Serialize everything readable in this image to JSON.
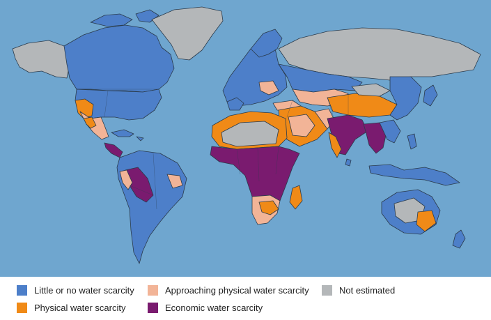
{
  "map": {
    "ocean_color": "#6fa6cf",
    "categories": {
      "little": {
        "label": "Little or no water scarcity",
        "color": "#4d7fc9"
      },
      "approaching": {
        "label": "Approaching physical water scarcity",
        "color": "#f2b497"
      },
      "not_estimated": {
        "label": "Not estimated",
        "color": "#b4b7b9"
      },
      "physical": {
        "label": "Physical water scarcity",
        "color": "#f08a17"
      },
      "economic": {
        "label": "Economic water scarcity",
        "color": "#7a1b6f"
      }
    }
  }
}
